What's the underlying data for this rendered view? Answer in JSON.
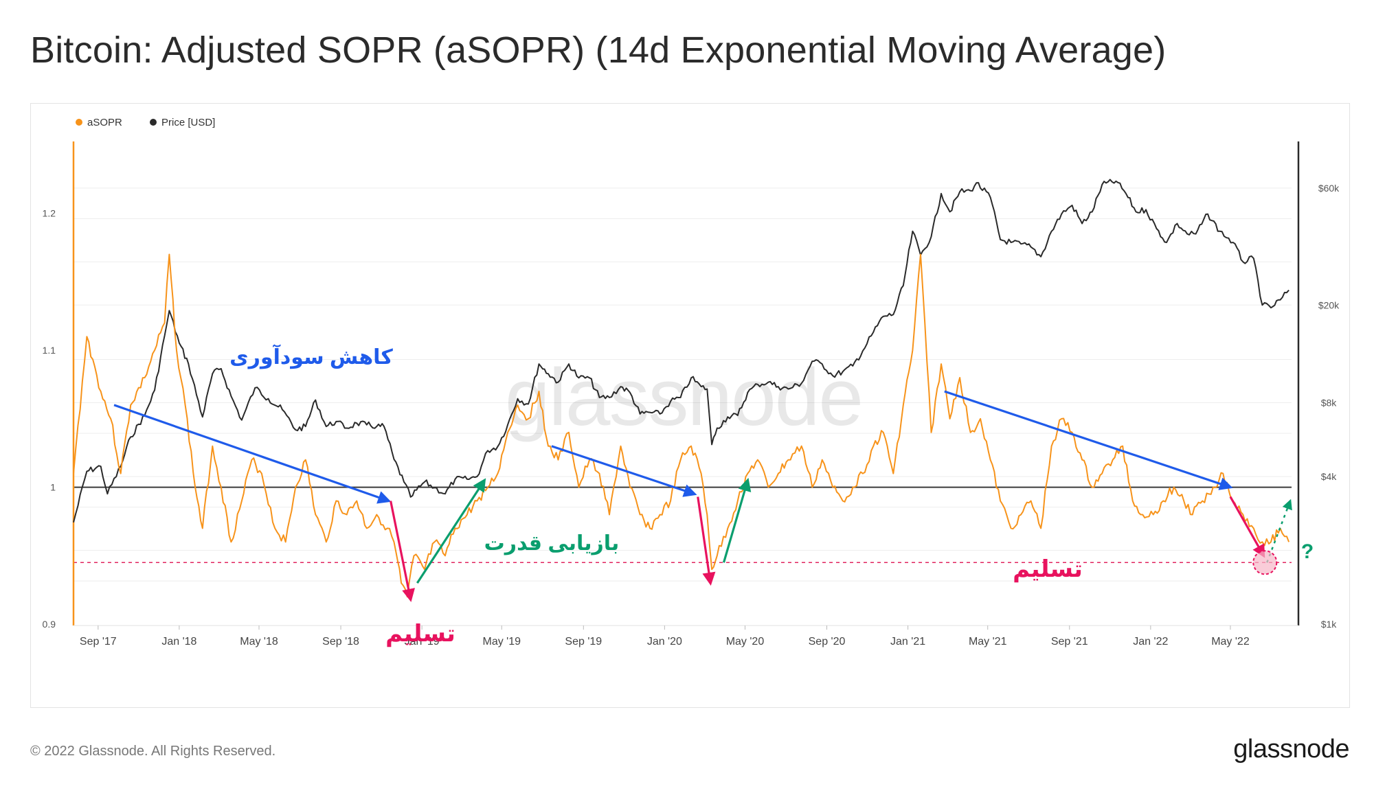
{
  "title": "Bitcoin: Adjusted SOPR (aSOPR) (14d Exponential Moving Average)",
  "footer": {
    "copyright": "© 2022 Glassnode. All Rights Reserved.",
    "logo": "glassnode"
  },
  "watermark": "glassnode",
  "colors": {
    "asopr": "#f7931a",
    "price": "#2a2a2a",
    "baseline": "#3a3a3a",
    "capitulation_line": "#e0245e",
    "blue_arrow": "#1f5bea",
    "green_arrow": "#0a9e6e",
    "red_arrow": "#e8125e"
  },
  "chart_data": {
    "type": "line",
    "legend": [
      {
        "name": "aSOPR",
        "color": "#f7931a"
      },
      {
        "name": "Price [USD]",
        "color": "#2a2a2a"
      }
    ],
    "x_range": [
      "2017-07-26",
      "2022-08-01"
    ],
    "x_ticks": [
      "Sep '17",
      "Jan '18",
      "May '18",
      "Sep '18",
      "Jan '19",
      "May '19",
      "Sep '19",
      "Jan '20",
      "May '20",
      "Sep '20",
      "Jan '21",
      "May '21",
      "Sep '21",
      "Jan '22",
      "May '22"
    ],
    "x_tick_dates": [
      "2017-09-01",
      "2018-01-01",
      "2018-05-01",
      "2018-09-01",
      "2019-01-01",
      "2019-05-01",
      "2019-09-01",
      "2020-01-01",
      "2020-05-01",
      "2020-09-01",
      "2021-01-01",
      "2021-05-01",
      "2021-09-01",
      "2022-01-01",
      "2022-05-01"
    ],
    "y_left": {
      "label": "aSOPR",
      "range": [
        0.9,
        1.25
      ],
      "ticks": [
        0.9,
        1,
        1.1,
        1.2
      ],
      "tick_labels": [
        "0.9",
        "1",
        "1.1",
        "1.2"
      ]
    },
    "y_right": {
      "label": "Price [USD]",
      "scale": "log",
      "range": [
        1000,
        90000
      ],
      "ticks": [
        1000,
        4000,
        8000,
        20000,
        60000
      ],
      "tick_labels": [
        "$1k",
        "$4k",
        "$8k",
        "$20k",
        "$60k"
      ]
    },
    "reference_lines": [
      {
        "name": "baseline",
        "value": 1.0,
        "style": "solid"
      },
      {
        "name": "capitulation-level",
        "value": 0.945,
        "style": "dashed"
      }
    ],
    "series": [
      {
        "name": "aSOPR",
        "x": [
          "2017-07-26",
          "2017-08-15",
          "2017-09-05",
          "2017-09-20",
          "2017-10-05",
          "2017-10-20",
          "2017-11-10",
          "2017-11-25",
          "2017-12-10",
          "2017-12-17",
          "2017-12-28",
          "2018-01-10",
          "2018-01-25",
          "2018-02-05",
          "2018-02-20",
          "2018-03-05",
          "2018-03-20",
          "2018-04-05",
          "2018-04-20",
          "2018-05-05",
          "2018-05-25",
          "2018-06-10",
          "2018-06-25",
          "2018-07-10",
          "2018-07-25",
          "2018-08-10",
          "2018-08-25",
          "2018-09-10",
          "2018-09-25",
          "2018-10-10",
          "2018-10-25",
          "2018-11-10",
          "2018-11-20",
          "2018-12-01",
          "2018-12-10",
          "2018-12-20",
          "2019-01-05",
          "2019-01-20",
          "2019-02-05",
          "2019-02-20",
          "2019-03-10",
          "2019-03-25",
          "2019-04-10",
          "2019-04-25",
          "2019-05-10",
          "2019-05-25",
          "2019-06-10",
          "2019-06-26",
          "2019-07-10",
          "2019-07-25",
          "2019-08-10",
          "2019-08-25",
          "2019-09-10",
          "2019-09-25",
          "2019-10-10",
          "2019-10-27",
          "2019-11-10",
          "2019-11-25",
          "2019-12-10",
          "2019-12-25",
          "2020-01-10",
          "2020-01-25",
          "2020-02-10",
          "2020-02-25",
          "2020-03-05",
          "2020-03-12",
          "2020-03-20",
          "2020-04-05",
          "2020-04-20",
          "2020-05-05",
          "2020-05-20",
          "2020-06-05",
          "2020-06-20",
          "2020-07-05",
          "2020-07-25",
          "2020-08-10",
          "2020-08-25",
          "2020-09-10",
          "2020-09-25",
          "2020-10-10",
          "2020-10-25",
          "2020-11-10",
          "2020-11-25",
          "2020-12-10",
          "2020-12-25",
          "2021-01-08",
          "2021-01-20",
          "2021-02-05",
          "2021-02-20",
          "2021-03-05",
          "2021-03-20",
          "2021-04-05",
          "2021-04-20",
          "2021-05-05",
          "2021-05-20",
          "2021-06-05",
          "2021-06-20",
          "2021-07-05",
          "2021-07-20",
          "2021-08-05",
          "2021-08-20",
          "2021-09-05",
          "2021-09-20",
          "2021-10-05",
          "2021-10-20",
          "2021-11-05",
          "2021-11-20",
          "2021-12-05",
          "2021-12-20",
          "2022-01-05",
          "2022-01-20",
          "2022-02-05",
          "2022-02-20",
          "2022-03-05",
          "2022-03-20",
          "2022-04-05",
          "2022-04-20",
          "2022-05-05",
          "2022-05-20",
          "2022-06-05",
          "2022-06-18",
          "2022-07-01",
          "2022-07-15",
          "2022-07-28"
        ],
        "values": [
          1.01,
          1.11,
          1.07,
          1.05,
          1.01,
          1.06,
          1.08,
          1.1,
          1.12,
          1.17,
          1.1,
          1.06,
          1.0,
          0.97,
          1.03,
          1.0,
          0.96,
          0.99,
          1.02,
          1.01,
          0.97,
          0.96,
          1.0,
          1.02,
          0.98,
          0.96,
          0.99,
          0.98,
          0.99,
          0.97,
          0.98,
          0.97,
          0.96,
          0.93,
          0.92,
          0.95,
          0.94,
          0.96,
          0.95,
          0.97,
          0.98,
          0.99,
          1.0,
          1.01,
          1.04,
          1.06,
          1.05,
          1.07,
          1.03,
          1.02,
          1.04,
          1.0,
          1.02,
          1.01,
          0.98,
          1.03,
          1.0,
          0.98,
          0.97,
          0.98,
          0.99,
          1.02,
          1.03,
          1.01,
          0.98,
          0.94,
          0.95,
          0.97,
          0.99,
          1.01,
          1.02,
          1.0,
          1.01,
          1.02,
          1.03,
          1.0,
          1.02,
          1.0,
          0.99,
          1.0,
          1.01,
          1.03,
          1.04,
          1.01,
          1.06,
          1.1,
          1.17,
          1.04,
          1.09,
          1.05,
          1.08,
          1.04,
          1.05,
          1.02,
          0.99,
          0.97,
          0.98,
          0.99,
          0.97,
          1.03,
          1.05,
          1.04,
          1.02,
          1.0,
          1.01,
          1.02,
          1.03,
          0.99,
          0.98,
          0.98,
          0.99,
          1.0,
          0.99,
          0.98,
          0.99,
          1.0,
          1.01,
          0.99,
          0.98,
          0.97,
          0.96,
          0.96,
          0.97,
          0.96
        ]
      },
      {
        "name": "Price [USD]",
        "x": [
          "2017-07-26",
          "2017-08-15",
          "2017-09-05",
          "2017-09-15",
          "2017-10-05",
          "2017-10-20",
          "2017-11-10",
          "2017-11-25",
          "2017-12-10",
          "2017-12-17",
          "2018-01-01",
          "2018-01-15",
          "2018-02-05",
          "2018-02-20",
          "2018-03-05",
          "2018-03-20",
          "2018-04-05",
          "2018-04-25",
          "2018-05-15",
          "2018-06-05",
          "2018-06-25",
          "2018-07-10",
          "2018-07-25",
          "2018-08-10",
          "2018-08-25",
          "2018-09-10",
          "2018-09-25",
          "2018-10-10",
          "2018-10-25",
          "2018-11-05",
          "2018-11-20",
          "2018-12-05",
          "2018-12-15",
          "2019-01-05",
          "2019-01-20",
          "2019-02-05",
          "2019-02-20",
          "2019-03-10",
          "2019-03-25",
          "2019-04-10",
          "2019-04-25",
          "2019-05-10",
          "2019-05-25",
          "2019-06-10",
          "2019-06-26",
          "2019-07-10",
          "2019-07-25",
          "2019-08-10",
          "2019-08-25",
          "2019-09-10",
          "2019-09-25",
          "2019-10-10",
          "2019-10-27",
          "2019-11-10",
          "2019-11-25",
          "2019-12-10",
          "2019-12-25",
          "2020-01-10",
          "2020-01-25",
          "2020-02-10",
          "2020-02-25",
          "2020-03-05",
          "2020-03-12",
          "2020-03-20",
          "2020-04-05",
          "2020-04-20",
          "2020-05-05",
          "2020-05-20",
          "2020-06-05",
          "2020-06-20",
          "2020-07-05",
          "2020-07-25",
          "2020-08-10",
          "2020-08-25",
          "2020-09-10",
          "2020-09-25",
          "2020-10-10",
          "2020-10-25",
          "2020-11-10",
          "2020-11-25",
          "2020-12-10",
          "2020-12-25",
          "2021-01-08",
          "2021-01-20",
          "2021-02-05",
          "2021-02-20",
          "2021-03-05",
          "2021-03-20",
          "2021-04-05",
          "2021-04-14",
          "2021-05-05",
          "2021-05-20",
          "2021-06-05",
          "2021-06-20",
          "2021-07-05",
          "2021-07-20",
          "2021-08-05",
          "2021-08-20",
          "2021-09-05",
          "2021-09-20",
          "2021-10-05",
          "2021-10-20",
          "2021-11-10",
          "2021-11-25",
          "2021-12-10",
          "2021-12-25",
          "2022-01-10",
          "2022-01-25",
          "2022-02-10",
          "2022-02-25",
          "2022-03-10",
          "2022-03-28",
          "2022-04-15",
          "2022-05-05",
          "2022-05-20",
          "2022-06-05",
          "2022-06-18",
          "2022-07-01",
          "2022-07-15",
          "2022-07-28"
        ],
        "values": [
          2600,
          4200,
          4400,
          3400,
          4400,
          5800,
          7100,
          9000,
          15000,
          19000,
          14000,
          11500,
          7000,
          10500,
          11000,
          8500,
          6800,
          9200,
          8300,
          7500,
          6200,
          6400,
          8200,
          6400,
          6700,
          6300,
          6600,
          6500,
          6400,
          6400,
          4700,
          3800,
          3300,
          3800,
          3600,
          3400,
          3900,
          3900,
          4000,
          5100,
          5300,
          6500,
          8300,
          7900,
          11500,
          10500,
          9700,
          11500,
          10100,
          10100,
          8400,
          8400,
          9300,
          8800,
          7200,
          7300,
          7200,
          8100,
          8400,
          10100,
          9300,
          9100,
          5400,
          6300,
          7000,
          7100,
          8800,
          9500,
          9700,
          9300,
          9100,
          9600,
          11800,
          11500,
          10300,
          10700,
          11300,
          13000,
          15500,
          18000,
          18300,
          24000,
          40000,
          32000,
          38000,
          57000,
          48000,
          58000,
          58500,
          63000,
          55000,
          37000,
          36000,
          35500,
          34500,
          31500,
          40000,
          47000,
          51000,
          43000,
          48000,
          62000,
          64000,
          57000,
          48000,
          49000,
          41000,
          36000,
          43000,
          39000,
          39000,
          47000,
          40000,
          36000,
          30000,
          31000,
          20000,
          19500,
          21000,
          23000
        ]
      }
    ],
    "annotations": [
      {
        "type": "text",
        "text": "کاهش سودآوری",
        "color": "#1f5bea"
      },
      {
        "type": "text",
        "text": "بازیابی قدرت",
        "color": "#0a9e6e"
      },
      {
        "type": "text",
        "text": "تسلیم",
        "color": "#e8125e"
      },
      {
        "type": "text",
        "text": "تسلیم",
        "color": "#e8125e"
      },
      {
        "type": "text",
        "text": "?",
        "color": "#0a9e6e"
      },
      {
        "type": "arrow",
        "name": "blue-arrow-1",
        "from": {
          "x": "2017-09-25",
          "y": 1.06
        },
        "to": {
          "x": "2018-11-12",
          "y": 0.99
        }
      },
      {
        "type": "arrow",
        "name": "blue-arrow-2",
        "from": {
          "x": "2019-07-15",
          "y": 1.03
        },
        "to": {
          "x": "2020-02-15",
          "y": 0.995
        }
      },
      {
        "type": "arrow",
        "name": "blue-arrow-3",
        "from": {
          "x": "2021-02-25",
          "y": 1.07
        },
        "to": {
          "x": "2022-05-01",
          "y": 1.0
        }
      },
      {
        "type": "arrow",
        "name": "green-arrow-1",
        "from": {
          "x": "2018-12-25",
          "y": 0.93
        },
        "to": {
          "x": "2019-04-05",
          "y": 1.005
        }
      },
      {
        "type": "arrow",
        "name": "green-arrow-2",
        "from": {
          "x": "2020-03-30",
          "y": 0.945
        },
        "to": {
          "x": "2020-05-05",
          "y": 1.005
        }
      },
      {
        "type": "arrow",
        "name": "red-arrow-1",
        "from": {
          "x": "2018-11-15",
          "y": 0.99
        },
        "to": {
          "x": "2018-12-15",
          "y": 0.918
        }
      },
      {
        "type": "arrow",
        "name": "red-arrow-2",
        "from": {
          "x": "2020-02-20",
          "y": 0.993
        },
        "to": {
          "x": "2020-03-10",
          "y": 0.93
        }
      },
      {
        "type": "arrow",
        "name": "red-arrow-3",
        "from": {
          "x": "2022-05-01",
          "y": 0.993
        },
        "to": {
          "x": "2022-06-20",
          "y": 0.95
        }
      },
      {
        "type": "dotted-arrow",
        "name": "green-dotted-arrow",
        "from": {
          "x": "2022-06-25",
          "y": 0.945
        },
        "to": {
          "x": "2022-07-30",
          "y": 0.99
        }
      },
      {
        "type": "circle",
        "name": "capitulation-circle",
        "at": {
          "x": "2022-06-22",
          "y": 0.945
        }
      }
    ]
  }
}
